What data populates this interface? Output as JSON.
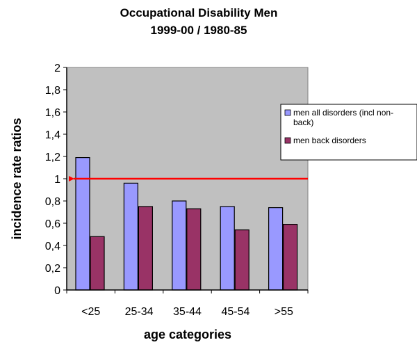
{
  "chart_data": {
    "type": "bar",
    "title": "Occupational Disability Men",
    "subtitle": "1999-00 / 1980-85",
    "xlabel": "age categories",
    "ylabel": "incidence rate ratios",
    "categories": [
      "<25",
      "25-34",
      "35-44",
      "45-54",
      ">55"
    ],
    "ylim": [
      0,
      2
    ],
    "yticks": [
      "0",
      "0,2",
      "0,4",
      "0,6",
      "0,8",
      "1",
      "1,2",
      "1,4",
      "1,6",
      "1,8",
      "2"
    ],
    "series": [
      {
        "name": "men all disorders (incl non-back)",
        "values": [
          1.19,
          0.96,
          0.8,
          0.75,
          0.74
        ],
        "color": "#9999ff"
      },
      {
        "name": "men back disorders",
        "values": [
          0.48,
          0.75,
          0.73,
          0.54,
          0.59
        ],
        "color": "#993366"
      }
    ],
    "reference_line": {
      "y": 1,
      "color": "#ff0000",
      "arrow": "left"
    },
    "plot_background": "#c0c0c0",
    "grid": false,
    "legend_position": "right"
  }
}
